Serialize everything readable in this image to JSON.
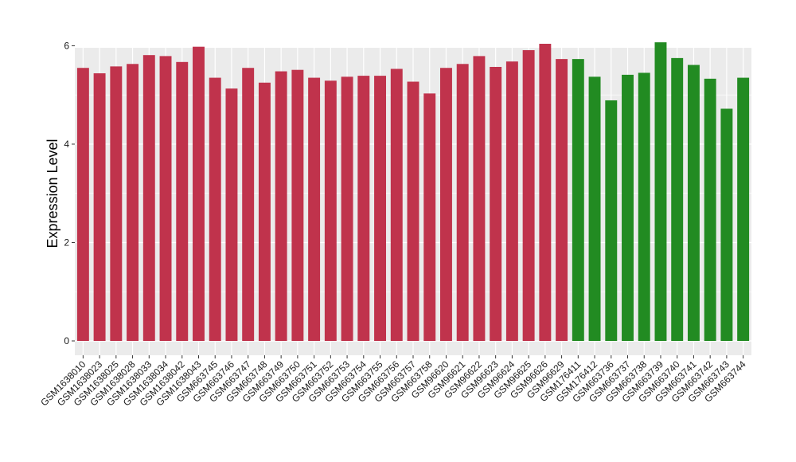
{
  "chart_data": {
    "type": "bar",
    "title": "",
    "xlabel": "",
    "ylabel": "Expression Level",
    "ylim": [
      0,
      6.25
    ],
    "yticks": [
      0,
      2,
      4,
      6
    ],
    "grid": true,
    "colors": {
      "panel": "#ebebeb",
      "grid": "#ffffff",
      "tick": "#333333"
    },
    "categories": [
      "GSM1638010",
      "GSM1638023",
      "GSM1638025",
      "GSM1638028",
      "GSM1638033",
      "GSM1638034",
      "GSM1638042",
      "GSM1638043",
      "GSM663745",
      "GSM663746",
      "GSM663747",
      "GSM663748",
      "GSM663749",
      "GSM663750",
      "GSM663751",
      "GSM663752",
      "GSM663753",
      "GSM663754",
      "GSM663755",
      "GSM663756",
      "GSM663757",
      "GSM663758",
      "GSM96620",
      "GSM96621",
      "GSM96622",
      "GSM96623",
      "GSM96624",
      "GSM96625",
      "GSM96626",
      "GSM96629",
      "GSM176411",
      "GSM176412",
      "GSM663736",
      "GSM663737",
      "GSM663738",
      "GSM663739",
      "GSM663740",
      "GSM663741",
      "GSM663742",
      "GSM663743",
      "GSM663744"
    ],
    "values": [
      5.55,
      5.44,
      5.58,
      5.63,
      5.81,
      5.79,
      5.67,
      5.98,
      5.35,
      5.13,
      5.55,
      5.25,
      5.48,
      5.51,
      5.35,
      5.29,
      5.37,
      5.39,
      5.39,
      5.53,
      5.27,
      5.03,
      5.55,
      5.63,
      5.79,
      5.57,
      5.68,
      5.91,
      6.04,
      5.73,
      5.73,
      5.37,
      4.89,
      5.41,
      5.45,
      6.07,
      5.75,
      5.61,
      5.33,
      4.72,
      5.35
    ],
    "bar_colors": [
      "#c0334c",
      "#c0334c",
      "#c0334c",
      "#c0334c",
      "#c0334c",
      "#c0334c",
      "#c0334c",
      "#c0334c",
      "#c0334c",
      "#c0334c",
      "#c0334c",
      "#c0334c",
      "#c0334c",
      "#c0334c",
      "#c0334c",
      "#c0334c",
      "#c0334c",
      "#c0334c",
      "#c0334c",
      "#c0334c",
      "#c0334c",
      "#c0334c",
      "#c0334c",
      "#c0334c",
      "#c0334c",
      "#c0334c",
      "#c0334c",
      "#c0334c",
      "#c0334c",
      "#c0334c",
      "#228b22",
      "#228b22",
      "#228b22",
      "#228b22",
      "#228b22",
      "#228b22",
      "#228b22",
      "#228b22",
      "#228b22",
      "#228b22",
      "#228b22"
    ]
  }
}
